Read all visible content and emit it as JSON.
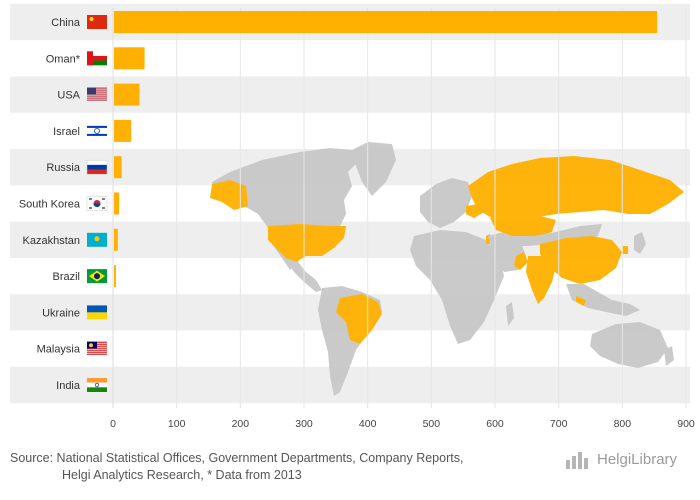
{
  "chart_data": {
    "type": "bar",
    "orientation": "horizontal",
    "title": "",
    "xlabel": "",
    "ylabel": "",
    "xlim": [
      0,
      900
    ],
    "xticks": [
      0,
      100,
      200,
      300,
      400,
      500,
      600,
      700,
      800,
      900
    ],
    "grid": true,
    "bar_color": "#FFB000",
    "highlight_color": "#FFB000",
    "categories": [
      "China",
      "Oman*",
      "USA",
      "Israel",
      "Russia",
      "South Korea",
      "Kazakhstan",
      "Brazil",
      "Ukraine",
      "Malaysia",
      "India"
    ],
    "values": [
      853,
      48,
      40,
      27,
      12,
      8,
      6,
      3,
      0,
      0,
      0
    ],
    "flags": [
      "china-flag",
      "oman-flag",
      "usa-flag",
      "israel-flag",
      "russia-flag",
      "south-korea-flag",
      "kazakhstan-flag",
      "brazil-flag",
      "ukraine-flag",
      "malaysia-flag",
      "india-flag"
    ],
    "background_map": "world-map-highlighting-listed-countries"
  },
  "footer": {
    "source_line1": "Source: National Statistical Offices, Government Departments, Company Reports,",
    "source_line2": "Helgi Analytics Research, * Data from 2013",
    "brand": "HelgiLibrary"
  },
  "colors": {
    "bar": "#FFB000",
    "map_land": "#C8C8C8",
    "row_band": "#EEEEEE"
  }
}
